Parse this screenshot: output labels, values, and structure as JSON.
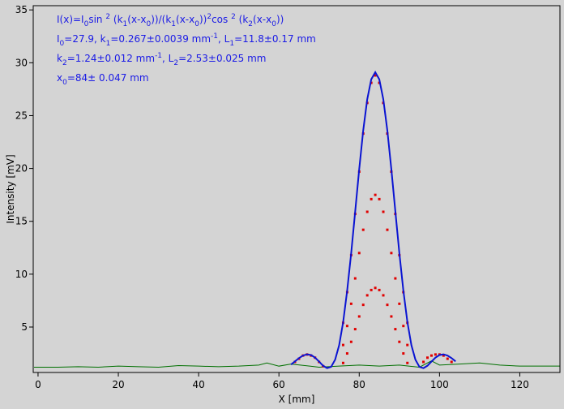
{
  "chart_data": {
    "type": "combo",
    "xlabel": "X [mm]",
    "ylabel": "Intensity [mV]",
    "xlim": [
      -1.2,
      130
    ],
    "xticks": [
      0,
      20,
      40,
      60,
      80,
      100,
      120
    ],
    "ylim": [
      0.7,
      35.4
    ],
    "yticks": [
      5,
      10,
      15,
      20,
      25,
      30,
      35
    ],
    "annotations": [
      [
        {
          "text": "I(x)=I",
          "pos": "base"
        },
        {
          "text": "0",
          "pos": "sub"
        },
        {
          "text": "sin ",
          "pos": "base"
        },
        {
          "text": "2",
          "pos": "sup"
        },
        {
          "text": " (k",
          "pos": "base"
        },
        {
          "text": "1",
          "pos": "sub"
        },
        {
          "text": "(x-x",
          "pos": "base"
        },
        {
          "text": "0",
          "pos": "sub"
        },
        {
          "text": "))/(k",
          "pos": "base"
        },
        {
          "text": "1",
          "pos": "sub"
        },
        {
          "text": "(x-x",
          "pos": "base"
        },
        {
          "text": "0",
          "pos": "sub"
        },
        {
          "text": "))",
          "pos": "base"
        },
        {
          "text": "2",
          "pos": "sup"
        },
        {
          "text": "cos ",
          "pos": "base"
        },
        {
          "text": "2",
          "pos": "sup"
        },
        {
          "text": " (k",
          "pos": "base"
        },
        {
          "text": "2",
          "pos": "sub"
        },
        {
          "text": "(x-x",
          "pos": "base"
        },
        {
          "text": "0",
          "pos": "sub"
        },
        {
          "text": "))",
          "pos": "base"
        }
      ],
      [
        {
          "text": "I",
          "pos": "base"
        },
        {
          "text": "0",
          "pos": "sub"
        },
        {
          "text": "=27.9,  k",
          "pos": "base"
        },
        {
          "text": "1",
          "pos": "sub"
        },
        {
          "text": "=0.267±0.0039 mm",
          "pos": "base"
        },
        {
          "text": "-1",
          "pos": "sup"
        },
        {
          "text": ",   L",
          "pos": "base"
        },
        {
          "text": "1",
          "pos": "sub"
        },
        {
          "text": "=11.8±0.17 mm",
          "pos": "base"
        }
      ],
      [
        {
          "text": "k",
          "pos": "base"
        },
        {
          "text": "2",
          "pos": "sub"
        },
        {
          "text": "=1.24±0.012 mm",
          "pos": "base"
        },
        {
          "text": "-1",
          "pos": "sup"
        },
        {
          "text": ",   L",
          "pos": "base"
        },
        {
          "text": "2",
          "pos": "sub"
        },
        {
          "text": "=2.53±0.025 mm",
          "pos": "base"
        }
      ],
      [
        {
          "text": "x",
          "pos": "base"
        },
        {
          "text": "0",
          "pos": "sub"
        },
        {
          "text": "=84±  0.047 mm",
          "pos": "base"
        }
      ]
    ],
    "series": [
      {
        "type": "line",
        "color": "#007000",
        "x": [
          -1,
          5,
          10,
          15,
          20,
          25,
          30,
          35,
          40,
          45,
          50,
          55,
          57,
          60,
          63,
          70,
          75,
          80,
          85,
          90,
          95,
          98,
          100,
          105,
          110,
          115,
          120,
          125,
          130
        ],
        "values": [
          1.2,
          1.2,
          1.25,
          1.2,
          1.3,
          1.25,
          1.2,
          1.35,
          1.3,
          1.25,
          1.3,
          1.4,
          1.6,
          1.3,
          1.5,
          1.2,
          1.3,
          1.4,
          1.3,
          1.4,
          1.2,
          1.8,
          1.4,
          1.5,
          1.6,
          1.4,
          1.3,
          1.3,
          1.3
        ]
      },
      {
        "type": "scatter",
        "color": "#e00000",
        "x": [
          76,
          77,
          78,
          79,
          80,
          81,
          82,
          83,
          84,
          85,
          86,
          87,
          88,
          89,
          90,
          91,
          92,
          76,
          77,
          78,
          79,
          80,
          81,
          82,
          83,
          84,
          85,
          86,
          87,
          88,
          89,
          90,
          91,
          92,
          76,
          77,
          78,
          79,
          80,
          81,
          82,
          83,
          84,
          85,
          86,
          87,
          88,
          89,
          90,
          91,
          92,
          64,
          65,
          66,
          67,
          68,
          69,
          70,
          71,
          96,
          97,
          98,
          99,
          100,
          101,
          102,
          103
        ],
        "values": [
          5.4,
          8.3,
          11.8,
          15.7,
          19.7,
          23.3,
          26.2,
          28.1,
          28.8,
          28.1,
          26.2,
          23.3,
          19.7,
          15.7,
          11.8,
          8.3,
          5.4,
          3.3,
          5.1,
          7.2,
          9.6,
          12.0,
          14.2,
          15.9,
          17.1,
          17.5,
          17.1,
          15.9,
          14.2,
          12.0,
          9.6,
          7.2,
          5.1,
          3.3,
          1.6,
          2.5,
          3.6,
          4.8,
          6.0,
          7.1,
          8.0,
          8.5,
          8.7,
          8.5,
          8.0,
          7.1,
          6.0,
          4.8,
          3.6,
          2.5,
          1.6,
          1.7,
          2.0,
          2.3,
          2.4,
          2.3,
          2.1,
          1.7,
          1.3,
          1.7,
          2.1,
          2.3,
          2.4,
          2.4,
          2.3,
          2.0,
          1.7
        ]
      },
      {
        "type": "line",
        "color": "#0a14d2",
        "x": [
          63,
          64,
          65,
          66,
          67,
          68,
          69,
          70,
          71,
          72,
          73,
          74,
          75,
          76,
          77,
          78,
          79,
          80,
          81,
          82,
          83,
          84,
          85,
          86,
          87,
          88,
          89,
          90,
          91,
          92,
          93,
          94,
          95,
          96,
          97,
          98,
          99,
          100,
          101,
          102,
          103,
          104
        ],
        "values": [
          1.45,
          1.75,
          2.06,
          2.3,
          2.42,
          2.35,
          2.11,
          1.73,
          1.34,
          1.11,
          1.23,
          1.91,
          3.28,
          5.47,
          8.44,
          11.99,
          15.94,
          19.94,
          23.61,
          26.55,
          28.43,
          29.1,
          28.43,
          26.55,
          23.61,
          19.94,
          15.94,
          11.99,
          8.44,
          5.47,
          3.28,
          1.91,
          1.23,
          1.11,
          1.34,
          1.73,
          2.11,
          2.35,
          2.42,
          2.3,
          2.06,
          1.75
        ]
      }
    ]
  }
}
